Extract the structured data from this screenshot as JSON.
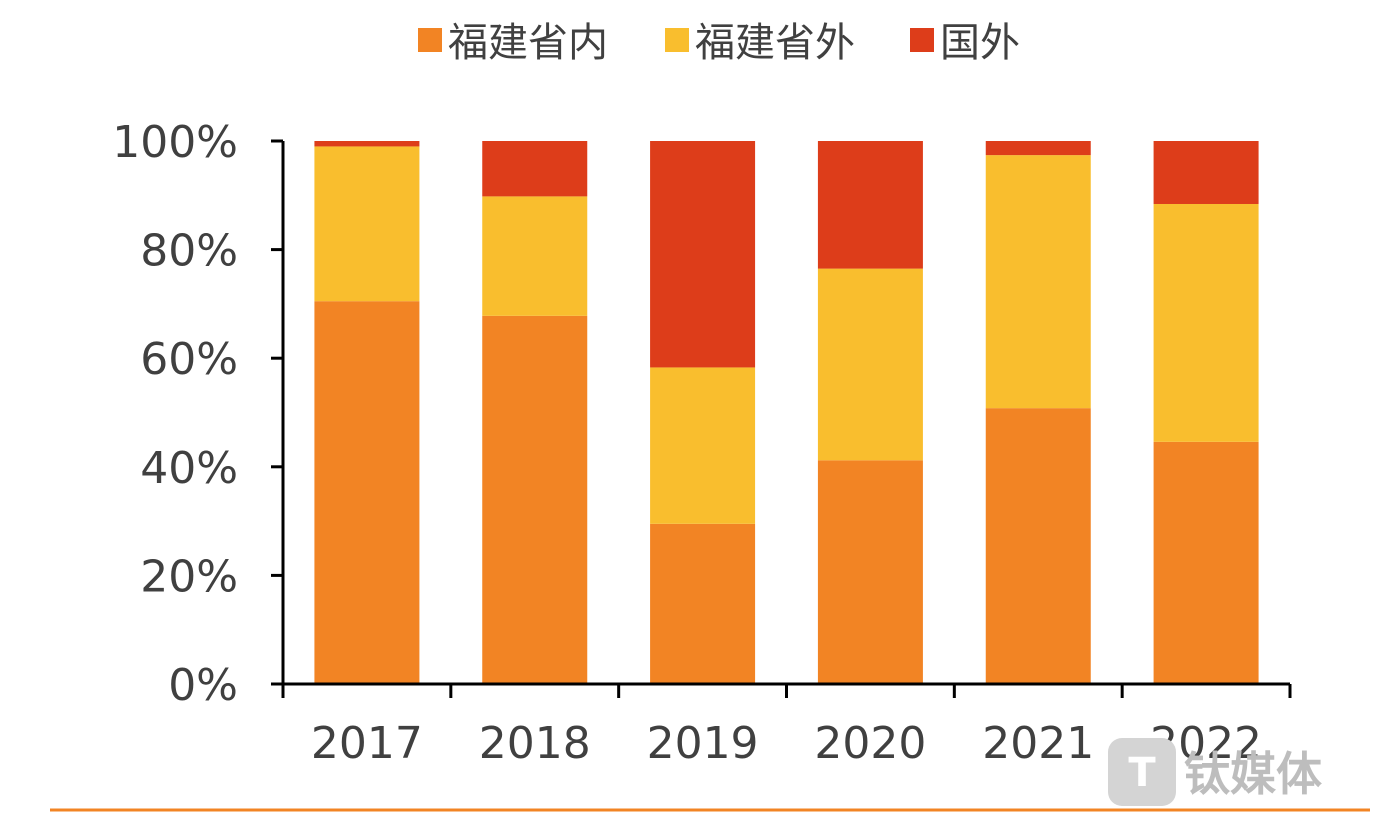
{
  "chart_data": {
    "type": "bar",
    "stacked": true,
    "categories": [
      "2017",
      "2018",
      "2019",
      "2020",
      "2021",
      "2022"
    ],
    "series": [
      {
        "name": "福建省内",
        "color": "#f28424",
        "values": [
          70.5,
          67.8,
          29.5,
          41.2,
          50.8,
          44.6
        ]
      },
      {
        "name": "福建省外",
        "color": "#f9be2e",
        "values": [
          28.5,
          22.0,
          28.8,
          35.3,
          46.6,
          43.8
        ]
      },
      {
        "name": "国外",
        "color": "#dd3d1a",
        "values": [
          1.0,
          10.2,
          41.7,
          23.5,
          2.6,
          11.6
        ]
      }
    ],
    "yticks": [
      "0%",
      "20%",
      "40%",
      "60%",
      "80%",
      "100%"
    ],
    "ylim": [
      0,
      100
    ],
    "legend": "top",
    "grid": false
  },
  "watermark": {
    "icon": "tmtpost-logo-icon",
    "text": "钛媒体"
  },
  "colors": {
    "axis": "#000000",
    "footer_rule": "#f28424"
  }
}
